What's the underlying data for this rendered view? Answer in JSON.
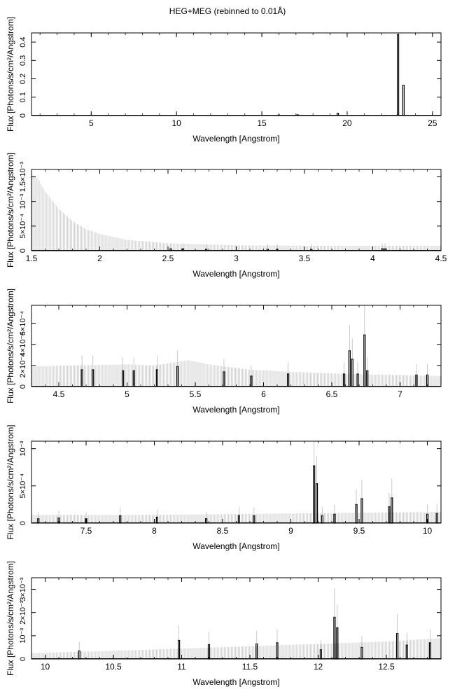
{
  "title": "HEG+MEG (rebinned to 0.01Å)",
  "chart_data": [
    {
      "type": "line",
      "title": "HEG+MEG (rebinned to 0.01Å)",
      "xlabel": "Wavelength [Angstrom]",
      "ylabel": "Flux [Photons/s/cm²/Angstrom]",
      "xlim": [
        1.5,
        25.5
      ],
      "ylim": [
        0,
        0.45
      ],
      "xticks": [
        5,
        10,
        15,
        20,
        25
      ],
      "yticks": [
        {
          "v": 0,
          "label": "0"
        },
        {
          "v": 0.1,
          "label": "0.1"
        },
        {
          "v": 0.2,
          "label": "0.2"
        },
        {
          "v": 0.3,
          "label": "0.3"
        },
        {
          "v": 0.4,
          "label": "0.4"
        }
      ],
      "spikes": [
        {
          "x": 22.98,
          "y": 0.44
        },
        {
          "x": 23.3,
          "y": 0.165
        },
        {
          "x": 19.45,
          "y": 0.012
        },
        {
          "x": 17.1,
          "y": 0.004
        },
        {
          "x": 16.0,
          "y": 0.003
        }
      ]
    },
    {
      "type": "line",
      "xlabel": "Wavelength [Angstrom]",
      "ylabel": "Flux [Photons/s/cm²/Angstrom]",
      "xlim": [
        1.5,
        4.5
      ],
      "ylim": [
        0,
        0.00165
      ],
      "xticks": [
        1.5,
        2,
        2.5,
        3,
        3.5,
        4,
        4.5
      ],
      "yticks": [
        {
          "v": 0,
          "label": "0"
        },
        {
          "v": 0.0005,
          "label": "5×10⁻⁴"
        },
        {
          "v": 0.001,
          "label": "10⁻³"
        },
        {
          "v": 0.0015,
          "label": "1.5×10⁻³"
        }
      ],
      "error_envelope": [
        [
          1.5,
          0.00155
        ],
        [
          1.55,
          0.00145
        ],
        [
          1.6,
          0.0012
        ],
        [
          1.7,
          0.00085
        ],
        [
          1.8,
          0.0006
        ],
        [
          1.9,
          0.00044
        ],
        [
          2.0,
          0.00034
        ],
        [
          2.2,
          0.00022
        ],
        [
          2.5,
          0.00015
        ],
        [
          3.0,
          0.00011
        ],
        [
          3.5,
          0.0001
        ],
        [
          4.0,
          0.0001
        ],
        [
          4.5,
          0.0001
        ]
      ],
      "spikes": [
        {
          "x": 2.52,
          "y": 4e-05
        },
        {
          "x": 2.61,
          "y": 4e-05
        },
        {
          "x": 2.78,
          "y": 3e-05
        },
        {
          "x": 3.23,
          "y": 3e-05
        },
        {
          "x": 3.3,
          "y": 3e-05
        },
        {
          "x": 3.55,
          "y": 3e-05
        },
        {
          "x": 4.07,
          "y": 4e-05
        },
        {
          "x": 4.09,
          "y": 4e-05
        }
      ]
    },
    {
      "type": "line",
      "xlabel": "Wavelength [Angstrom]",
      "ylabel": "Flux [Photons/s/cm²/Angstrom]",
      "xlim": [
        4.3,
        7.3
      ],
      "ylim": [
        0,
        0.00077
      ],
      "xticks": [
        4.5,
        5,
        5.5,
        6,
        6.5,
        7
      ],
      "yticks": [
        {
          "v": 0,
          "label": "0"
        },
        {
          "v": 0.0002,
          "label": "2×10⁻⁴"
        },
        {
          "v": 0.0004,
          "label": "4×10⁻⁴"
        },
        {
          "v": 0.0006,
          "label": "6×10⁻⁴"
        }
      ],
      "error_envelope": [
        [
          4.3,
          0.00019
        ],
        [
          4.6,
          0.0002
        ],
        [
          5.0,
          0.00021
        ],
        [
          5.2,
          0.0002
        ],
        [
          5.45,
          0.00025
        ],
        [
          5.6,
          0.00021
        ],
        [
          5.9,
          0.00016
        ],
        [
          6.2,
          0.00014
        ],
        [
          6.6,
          0.00012
        ],
        [
          7.3,
          0.0001
        ]
      ],
      "spikes": [
        {
          "x": 4.67,
          "y": 0.00016
        },
        {
          "x": 4.75,
          "y": 0.00016
        },
        {
          "x": 4.97,
          "y": 0.00015
        },
        {
          "x": 5.05,
          "y": 0.00015
        },
        {
          "x": 5.22,
          "y": 0.00016
        },
        {
          "x": 5.37,
          "y": 0.00019
        },
        {
          "x": 5.71,
          "y": 0.00014
        },
        {
          "x": 5.91,
          "y": 0.0001
        },
        {
          "x": 6.18,
          "y": 0.00012
        },
        {
          "x": 6.59,
          "y": 0.00012
        },
        {
          "x": 6.63,
          "y": 0.00034
        },
        {
          "x": 6.65,
          "y": 0.00026
        },
        {
          "x": 6.69,
          "y": 0.00012
        },
        {
          "x": 6.74,
          "y": 0.00049
        },
        {
          "x": 6.76,
          "y": 0.00015
        },
        {
          "x": 7.12,
          "y": 0.00011
        },
        {
          "x": 7.2,
          "y": 0.00011
        }
      ]
    },
    {
      "type": "line",
      "xlabel": "Wavelength [Angstrom]",
      "ylabel": "Flux [Photons/s/cm²/Angstrom]",
      "xlim": [
        7.1,
        10.1
      ],
      "ylim": [
        0,
        0.0011
      ],
      "xticks": [
        7.5,
        8,
        8.5,
        9,
        9.5,
        10
      ],
      "yticks": [
        {
          "v": 0,
          "label": "0"
        },
        {
          "v": 0.0005,
          "label": "5×10⁻⁴"
        },
        {
          "v": 0.001,
          "label": "10⁻³"
        }
      ],
      "error_envelope": [
        [
          7.1,
          0.00011
        ],
        [
          7.5,
          0.00011
        ],
        [
          8.0,
          0.00011
        ],
        [
          8.5,
          0.00012
        ],
        [
          9.0,
          0.00013
        ],
        [
          9.5,
          0.00014
        ],
        [
          10.1,
          0.00015
        ]
      ],
      "spikes": [
        {
          "x": 7.15,
          "y": 6e-05
        },
        {
          "x": 7.3,
          "y": 7e-05
        },
        {
          "x": 7.5,
          "y": 6e-05
        },
        {
          "x": 7.75,
          "y": 0.0001
        },
        {
          "x": 8.02,
          "y": 8e-05
        },
        {
          "x": 8.38,
          "y": 6e-05
        },
        {
          "x": 8.62,
          "y": 0.0001
        },
        {
          "x": 8.73,
          "y": 0.0001
        },
        {
          "x": 9.17,
          "y": 0.00077
        },
        {
          "x": 9.19,
          "y": 0.00053
        },
        {
          "x": 9.23,
          "y": 0.0001
        },
        {
          "x": 9.32,
          "y": 0.00012
        },
        {
          "x": 9.48,
          "y": 0.00025
        },
        {
          "x": 9.52,
          "y": 0.00033
        },
        {
          "x": 9.72,
          "y": 0.00022
        },
        {
          "x": 9.74,
          "y": 0.00034
        },
        {
          "x": 10.0,
          "y": 0.00012
        },
        {
          "x": 10.07,
          "y": 0.00013
        }
      ]
    },
    {
      "type": "line",
      "xlabel": "Wavelength [Angstrom]",
      "ylabel": "Flux [Photons/s/cm²/Angstrom]",
      "xlim": [
        9.9,
        12.9
      ],
      "ylim": [
        0,
        0.0035
      ],
      "xticks": [
        10,
        10.5,
        11,
        11.5,
        12,
        12.5
      ],
      "yticks": [
        {
          "v": 0,
          "label": "0"
        },
        {
          "v": 0.001,
          "label": "10⁻³"
        },
        {
          "v": 0.002,
          "label": "2×10⁻³"
        },
        {
          "v": 0.003,
          "label": "3×10⁻³"
        }
      ],
      "error_envelope": [
        [
          9.9,
          0.00025
        ],
        [
          10.5,
          0.00035
        ],
        [
          11.0,
          0.00045
        ],
        [
          11.5,
          0.00055
        ],
        [
          12.0,
          0.00065
        ],
        [
          12.5,
          0.00075
        ],
        [
          12.9,
          0.0009
        ]
      ],
      "spikes": [
        {
          "x": 10.25,
          "y": 0.00035
        },
        {
          "x": 10.98,
          "y": 0.0008
        },
        {
          "x": 11.2,
          "y": 0.00062
        },
        {
          "x": 11.55,
          "y": 0.00065
        },
        {
          "x": 11.7,
          "y": 0.0007
        },
        {
          "x": 12.02,
          "y": 0.0004
        },
        {
          "x": 12.12,
          "y": 0.0018
        },
        {
          "x": 12.14,
          "y": 0.00135
        },
        {
          "x": 12.32,
          "y": 0.0005
        },
        {
          "x": 12.58,
          "y": 0.0011
        },
        {
          "x": 12.65,
          "y": 0.0006
        },
        {
          "x": 12.82,
          "y": 0.0007
        }
      ]
    }
  ]
}
